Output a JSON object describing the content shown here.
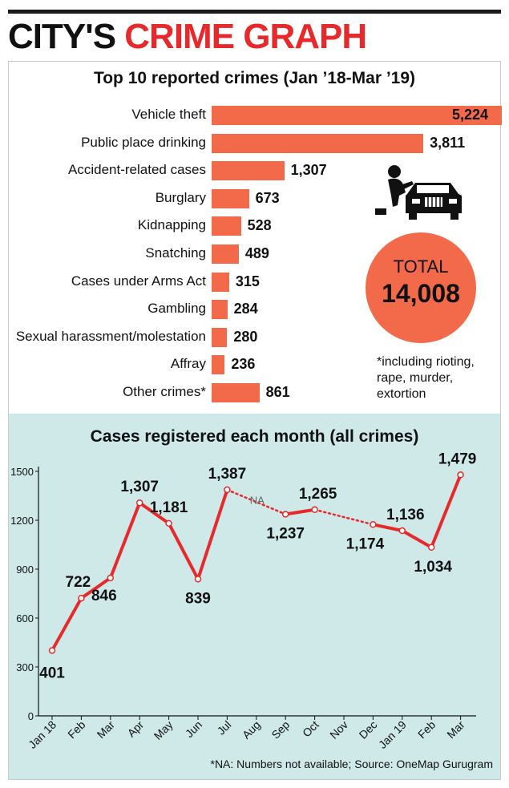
{
  "header": {
    "title_part1": "CITY'S",
    "title_part2": "CRIME GRAPH"
  },
  "colors": {
    "bar": "#f26a4a",
    "line": "#e8292b",
    "accent_title": "#e8292b",
    "panel_bg": "#cfe9e9"
  },
  "icons": [
    "car-theft-icon"
  ],
  "total": {
    "label": "TOTAL",
    "value": "14,008"
  },
  "footnote": "*including rioting, rape, murder, extortion",
  "source": "*NA: Numbers not available; Source: OneMap Gurugram",
  "chart_data": [
    {
      "type": "bar",
      "orientation": "horizontal",
      "title": "Top 10 reported crimes (Jan ’18-Mar ’19)",
      "categories": [
        "Vehicle theft",
        "Public place drinking",
        "Accident-related cases",
        "Burglary",
        "Kidnapping",
        "Snatching",
        "Cases under Arms Act",
        "Gambling",
        "Sexual harassment/molestation",
        "Affray",
        "Other crimes*"
      ],
      "values": [
        5224,
        3811,
        1307,
        673,
        528,
        489,
        315,
        284,
        280,
        236,
        861
      ],
      "value_labels": [
        "5,224",
        "3,811",
        "1,307",
        "673",
        "528",
        "489",
        "315",
        "284",
        "280",
        "236",
        "861"
      ]
    },
    {
      "type": "line",
      "title": "Cases registered each month (all crimes)",
      "categories": [
        "Jan 18",
        "Feb",
        "Mar",
        "Apr",
        "May",
        "Jun",
        "Jul",
        "Aug",
        "Sep",
        "Oct",
        "Nov",
        "Dec",
        "Jan 19",
        "Feb",
        "Mar"
      ],
      "values": [
        401,
        722,
        846,
        1307,
        1181,
        839,
        1387,
        null,
        1237,
        1265,
        null,
        1174,
        1136,
        1034,
        1479
      ],
      "value_labels": [
        "401",
        "722",
        "846",
        "1,307",
        "1,181",
        "839",
        "1,387",
        "",
        "1,237",
        "1,265",
        "",
        "1,174",
        "1,136",
        "1,034",
        "1,479"
      ],
      "gap_label": "NA",
      "yticks": [
        "0",
        "300",
        "600",
        "900",
        "1200",
        "1500"
      ],
      "ylim": [
        0,
        1500
      ],
      "grid": false
    }
  ]
}
